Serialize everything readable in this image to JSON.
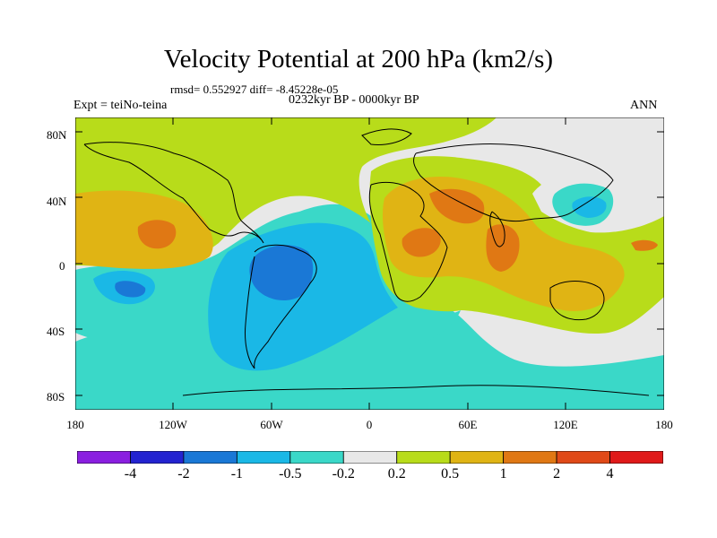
{
  "header": {
    "title": "Velocity Potential at 200 hPa (km2/s)",
    "stats": "rmsd= 0.552927 diff= -8.45228e-05",
    "experiment": "Expt = teiNo-teina",
    "period": "0232kyr BP - 0000kyr BP",
    "season": "ANN"
  },
  "axes": {
    "y_ticks": [
      "80N",
      "40N",
      "0",
      "40S",
      "80S"
    ],
    "x_ticks": [
      "180",
      "120W",
      "60W",
      "0",
      "60E",
      "120E",
      "180"
    ]
  },
  "colorbar": {
    "labels": [
      "-4",
      "-2",
      "-1",
      "-0.5",
      "-0.2",
      "0.2",
      "0.5",
      "1",
      "2",
      "4"
    ],
    "colors": [
      "#8a1fe0",
      "#2323d0",
      "#1a78d6",
      "#1ab8e6",
      "#3ad8c8",
      "#e8e8e8",
      "#b8dc1a",
      "#e0b414",
      "#e07814",
      "#e04a18",
      "#e01a1a"
    ]
  },
  "map": {
    "colors": {
      "neutral": "#e8e8e8",
      "teal": "#3ad8c8",
      "cyan": "#1ab8e6",
      "blue": "#1a78d6",
      "green": "#b8dc1a",
      "yellow": "#e0b414",
      "orange": "#e07814"
    }
  }
}
